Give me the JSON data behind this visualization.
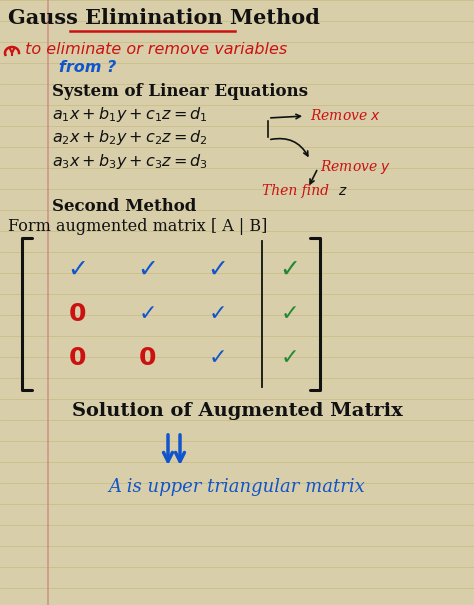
{
  "background_color": "#d8ceaa",
  "title": "Gauss Elimination Method",
  "subtitle_red": " to eliminate or remove variables",
  "subtitle_blue": "   from ?",
  "section1_title": "System of Linear Equations",
  "eq1": "$a_1x + b_1y + c_1z = d_1$",
  "eq2": "$a_2x + b_2y + c_2z = d_2$",
  "eq3": "$a_3x + b_3y + c_3z = d_3$",
  "remove_x": "Remove $x$",
  "remove_y": "Remove $y$",
  "then_find_text": "Then find",
  "then_find_z": "$z$",
  "second_method": "Second Method",
  "form_matrix": "Form augmented matrix [ A | B]",
  "solution_title": "Solution of Augmented Matrix",
  "solution_sub": "A is upper triangular matrix",
  "red_color": "#cc1111",
  "blue_color": "#1155cc",
  "dark_blue_color": "#1155cc",
  "green_color": "#228833",
  "black_color": "#111111",
  "bg_line_color": "#c5b87a",
  "margin_line_color": "#cc7777",
  "fig_width": 4.74,
  "fig_height": 6.05,
  "dpi": 100
}
